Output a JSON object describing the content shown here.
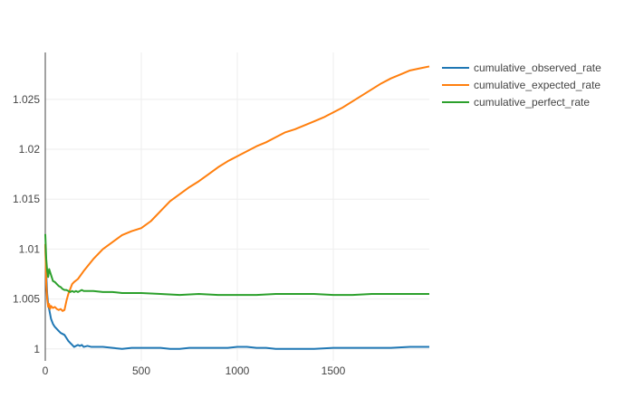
{
  "chart_data": {
    "type": "line",
    "title": "",
    "xlabel": "",
    "ylabel": "",
    "xlim": [
      0,
      2000
    ],
    "ylim": [
      0.9988,
      1.0297
    ],
    "x_ticks": [
      0,
      500,
      1000,
      1500
    ],
    "x_tick_labels": [
      "0",
      "500",
      "1000",
      "1500"
    ],
    "y_ticks": [
      1.0,
      1.005,
      1.01,
      1.015,
      1.02,
      1.025
    ],
    "y_tick_labels": [
      "1",
      "1.005",
      "1.01",
      "1.015",
      "1.02",
      "1.025"
    ],
    "grid": true,
    "legend_position": "top-right",
    "series": [
      {
        "name": "cumulative_observed_rate",
        "color": "#1f77b4",
        "x": [
          0,
          5,
          10,
          15,
          20,
          25,
          30,
          40,
          50,
          60,
          70,
          80,
          90,
          100,
          110,
          120,
          130,
          140,
          150,
          160,
          170,
          180,
          190,
          200,
          220,
          240,
          260,
          280,
          300,
          350,
          400,
          450,
          500,
          550,
          600,
          650,
          700,
          750,
          800,
          850,
          900,
          950,
          1000,
          1050,
          1100,
          1150,
          1200,
          1300,
          1400,
          1500,
          1600,
          1700,
          1800,
          1900,
          2000
        ],
        "y": [
          1.0105,
          1.0075,
          1.0055,
          1.0045,
          1.004,
          1.0035,
          1.003,
          1.0025,
          1.0022,
          1.002,
          1.0018,
          1.0016,
          1.0015,
          1.0014,
          1.0011,
          1.0008,
          1.0006,
          1.0004,
          1.0002,
          1.0003,
          1.0004,
          1.0003,
          1.0004,
          1.0002,
          1.0003,
          1.0002,
          1.0002,
          1.0002,
          1.0002,
          1.0001,
          1.0,
          1.0001,
          1.0001,
          1.0001,
          1.0001,
          1.0,
          1.0,
          1.0001,
          1.0001,
          1.0001,
          1.0001,
          1.0001,
          1.0002,
          1.0002,
          1.0001,
          1.0001,
          1.0,
          1.0,
          1.0,
          1.0001,
          1.0001,
          1.0001,
          1.0001,
          1.0002,
          1.0002
        ]
      },
      {
        "name": "cumulative_expected_rate",
        "color": "#ff7f0e",
        "x": [
          0,
          5,
          10,
          15,
          20,
          25,
          30,
          40,
          50,
          60,
          70,
          80,
          90,
          100,
          110,
          120,
          130,
          140,
          150,
          170,
          200,
          250,
          300,
          350,
          400,
          450,
          500,
          550,
          600,
          650,
          700,
          750,
          800,
          850,
          900,
          950,
          1000,
          1050,
          1100,
          1150,
          1200,
          1250,
          1300,
          1350,
          1400,
          1450,
          1500,
          1550,
          1600,
          1650,
          1700,
          1750,
          1800,
          1850,
          1900,
          1950,
          2000
        ],
        "y": [
          1.0105,
          1.0065,
          1.005,
          1.0042,
          1.0045,
          1.004,
          1.0043,
          1.0041,
          1.0042,
          1.004,
          1.0039,
          1.004,
          1.0038,
          1.0039,
          1.0048,
          1.0055,
          1.006,
          1.0065,
          1.0067,
          1.007,
          1.0078,
          1.009,
          1.01,
          1.0107,
          1.0114,
          1.0118,
          1.0121,
          1.0128,
          1.0138,
          1.0148,
          1.0155,
          1.0162,
          1.0168,
          1.0175,
          1.0182,
          1.0188,
          1.0193,
          1.0198,
          1.0203,
          1.0207,
          1.0212,
          1.0217,
          1.022,
          1.0224,
          1.0228,
          1.0232,
          1.0237,
          1.0242,
          1.0248,
          1.0254,
          1.026,
          1.0266,
          1.0271,
          1.0275,
          1.0279,
          1.0281,
          1.0283
        ]
      },
      {
        "name": "cumulative_perfect_rate",
        "color": "#2ca02c",
        "x": [
          0,
          5,
          10,
          15,
          20,
          25,
          30,
          40,
          50,
          60,
          70,
          80,
          90,
          100,
          110,
          120,
          130,
          140,
          150,
          160,
          170,
          180,
          190,
          200,
          250,
          300,
          350,
          400,
          450,
          500,
          600,
          700,
          800,
          900,
          1000,
          1100,
          1200,
          1300,
          1400,
          1500,
          1600,
          1700,
          1800,
          1900,
          2000
        ],
        "y": [
          1.0115,
          1.009,
          1.0078,
          1.0072,
          1.008,
          1.0077,
          1.0074,
          1.0068,
          1.0067,
          1.0065,
          1.0063,
          1.0062,
          1.006,
          1.0059,
          1.0059,
          1.0058,
          1.0057,
          1.0058,
          1.0057,
          1.0058,
          1.0057,
          1.0058,
          1.0059,
          1.0058,
          1.0058,
          1.0057,
          1.0057,
          1.0056,
          1.0056,
          1.0056,
          1.0055,
          1.0054,
          1.0055,
          1.0054,
          1.0054,
          1.0054,
          1.0055,
          1.0055,
          1.0055,
          1.0054,
          1.0054,
          1.0055,
          1.0055,
          1.0055,
          1.0055
        ]
      }
    ]
  }
}
